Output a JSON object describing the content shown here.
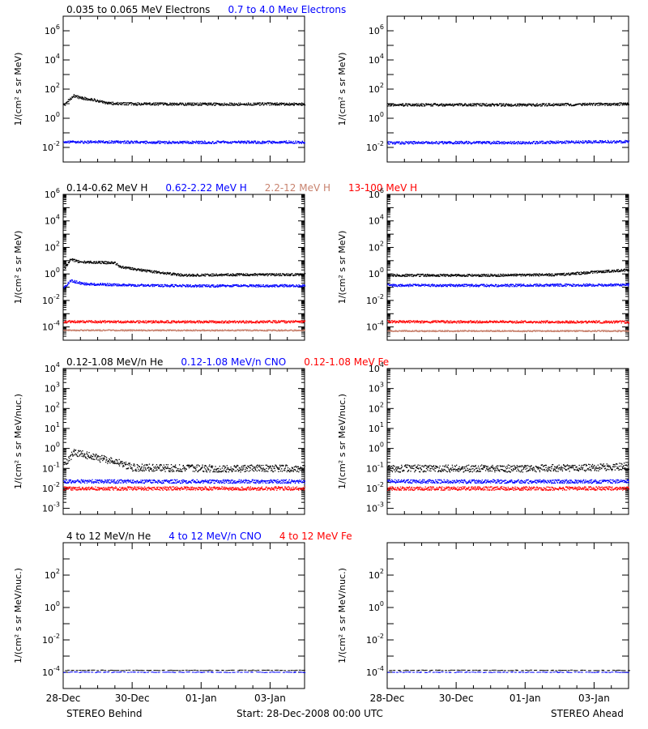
{
  "colors": {
    "black": "#000000",
    "blue": "#0000ff",
    "salmon": "#c8826e",
    "red": "#ff0000"
  },
  "footer": {
    "left": "STEREO Behind",
    "center": "Start: 28-Dec-2008 00:00 UTC",
    "right": "STEREO Ahead"
  },
  "chart_data": [
    {
      "type": "scatter",
      "panel": "electrons",
      "header": [
        {
          "text": "0.035 to 0.065 MeV Electrons",
          "color": "black"
        },
        {
          "text": "0.7 to 4.0 Mev Electrons",
          "color": "blue"
        }
      ],
      "ylabel": "1/(cm² s sr MeV)",
      "ylim_exp": [
        -3,
        7
      ],
      "ytick_exps": [
        -2,
        0,
        2,
        4,
        6
      ],
      "x_days": [
        0,
        7
      ],
      "xticks": [
        {
          "day": 0,
          "label": ""
        },
        {
          "day": 2,
          "label": ""
        },
        {
          "day": 4,
          "label": ""
        },
        {
          "day": 6,
          "label": ""
        }
      ],
      "behind": {
        "series": [
          {
            "color": "black",
            "points": [
              [
                0,
                0.85
              ],
              [
                0.15,
                1.25
              ],
              [
                0.3,
                1.55
              ],
              [
                0.5,
                1.4
              ],
              [
                0.8,
                1.3
              ],
              [
                1.0,
                1.2
              ],
              [
                1.2,
                1.05
              ],
              [
                1.6,
                1.0
              ],
              [
                2.5,
                0.98
              ],
              [
                4.0,
                0.97
              ],
              [
                5.5,
                0.98
              ],
              [
                7.0,
                0.98
              ]
            ]
          },
          {
            "color": "blue",
            "points": [
              [
                0,
                -1.65
              ],
              [
                1.0,
                -1.62
              ],
              [
                3.0,
                -1.65
              ],
              [
                5.0,
                -1.64
              ],
              [
                7.0,
                -1.63
              ]
            ]
          }
        ]
      },
      "ahead": {
        "series": [
          {
            "color": "black",
            "points": [
              [
                0,
                0.92
              ],
              [
                2.0,
                0.93
              ],
              [
                4.0,
                0.92
              ],
              [
                5.5,
                0.95
              ],
              [
                7.0,
                0.98
              ]
            ]
          },
          {
            "color": "blue",
            "points": [
              [
                0,
                -1.68
              ],
              [
                2.0,
                -1.66
              ],
              [
                4.0,
                -1.67
              ],
              [
                5.5,
                -1.62
              ],
              [
                7.0,
                -1.6
              ]
            ]
          }
        ]
      }
    },
    {
      "type": "scatter",
      "panel": "protons",
      "header": [
        {
          "text": "0.14-0.62 MeV H",
          "color": "black"
        },
        {
          "text": "0.62-2.22 MeV H",
          "color": "blue"
        },
        {
          "text": "2.2-12 MeV H",
          "color": "salmon"
        },
        {
          "text": "13-100 MeV H",
          "color": "red"
        }
      ],
      "ylabel": "1/(cm² s sr MeV)",
      "ylim_exp": [
        -5,
        6
      ],
      "ytick_exps": [
        -4,
        -2,
        0,
        2,
        4,
        6
      ],
      "x_days": [
        0,
        7
      ],
      "xticks": [
        {
          "day": 0,
          "label": ""
        },
        {
          "day": 2,
          "label": ""
        },
        {
          "day": 4,
          "label": ""
        },
        {
          "day": 6,
          "label": ""
        }
      ],
      "behind": {
        "series": [
          {
            "color": "black",
            "points": [
              [
                0,
                0.3
              ],
              [
                0.2,
                1.1
              ],
              [
                0.5,
                0.9
              ],
              [
                1.5,
                0.85
              ],
              [
                1.6,
                0.55
              ],
              [
                2.5,
                0.2
              ],
              [
                3.5,
                -0.1
              ],
              [
                5.0,
                -0.05
              ],
              [
                7.0,
                -0.05
              ]
            ]
          },
          {
            "color": "blue",
            "points": [
              [
                0,
                -1.1
              ],
              [
                0.2,
                -0.5
              ],
              [
                0.6,
                -0.75
              ],
              [
                2.0,
                -0.85
              ],
              [
                4.0,
                -0.9
              ],
              [
                7.0,
                -0.88
              ]
            ]
          },
          {
            "color": "salmon",
            "points": [
              [
                0,
                -4.25
              ],
              [
                7.0,
                -4.25
              ]
            ]
          },
          {
            "color": "red",
            "points": [
              [
                0,
                -3.6
              ],
              [
                2.0,
                -3.6
              ],
              [
                4.0,
                -3.62
              ],
              [
                7.0,
                -3.6
              ]
            ]
          }
        ]
      },
      "ahead": {
        "series": [
          {
            "color": "black",
            "points": [
              [
                0,
                -0.1
              ],
              [
                3.0,
                -0.1
              ],
              [
                5.0,
                -0.05
              ],
              [
                6.0,
                0.15
              ],
              [
                7.0,
                0.3
              ]
            ]
          },
          {
            "color": "blue",
            "points": [
              [
                0,
                -0.85
              ],
              [
                3.0,
                -0.87
              ],
              [
                5.0,
                -0.84
              ],
              [
                7.0,
                -0.82
              ]
            ]
          },
          {
            "color": "salmon",
            "points": [
              [
                0,
                -4.3
              ],
              [
                7.0,
                -4.3
              ]
            ]
          },
          {
            "color": "red",
            "points": [
              [
                0,
                -3.6
              ],
              [
                7.0,
                -3.62
              ]
            ]
          }
        ]
      }
    },
    {
      "type": "scatter",
      "panel": "low-energy-ions",
      "header": [
        {
          "text": "0.12-1.08 MeV/n He",
          "color": "black"
        },
        {
          "text": "0.12-1.08 MeV/n CNO",
          "color": "blue"
        },
        {
          "text": "0.12-1.08 MeV Fe",
          "color": "red"
        }
      ],
      "ylabel": "1/(cm² s sr MeV/nuc.)",
      "ylim_exp": [
        -3.3,
        4
      ],
      "ytick_exps": [
        -3,
        -2,
        -1,
        0,
        1,
        2,
        3,
        4
      ],
      "x_days": [
        0,
        7
      ],
      "xticks": [
        {
          "day": 0,
          "label": ""
        },
        {
          "day": 2,
          "label": ""
        },
        {
          "day": 4,
          "label": ""
        },
        {
          "day": 6,
          "label": ""
        }
      ],
      "behind": {
        "series": [
          {
            "color": "black",
            "points": [
              [
                0,
                -0.8
              ],
              [
                0.3,
                -0.2
              ],
              [
                0.6,
                -0.3
              ],
              [
                1.0,
                -0.5
              ],
              [
                1.4,
                -0.6
              ],
              [
                2.0,
                -0.95
              ],
              [
                4.0,
                -1.0
              ],
              [
                7.0,
                -1.0
              ]
            ]
          },
          {
            "color": "blue",
            "points": [
              [
                0,
                -1.65
              ],
              [
                7.0,
                -1.65
              ]
            ]
          },
          {
            "color": "red",
            "points": [
              [
                0,
                -2.0
              ],
              [
                7.0,
                -2.0
              ]
            ]
          }
        ]
      },
      "ahead": {
        "series": [
          {
            "color": "black",
            "points": [
              [
                0,
                -1.0
              ],
              [
                4.0,
                -1.0
              ],
              [
                6.0,
                -0.95
              ],
              [
                7.0,
                -0.9
              ]
            ]
          },
          {
            "color": "blue",
            "points": [
              [
                0,
                -1.65
              ],
              [
                7.0,
                -1.65
              ]
            ]
          },
          {
            "color": "red",
            "points": [
              [
                0,
                -2.0
              ],
              [
                7.0,
                -2.0
              ]
            ]
          }
        ]
      }
    },
    {
      "type": "scatter",
      "panel": "high-energy-ions",
      "header": [
        {
          "text": "4 to 12 MeV/n He",
          "color": "black"
        },
        {
          "text": "4 to 12 MeV/n CNO",
          "color": "blue"
        },
        {
          "text": "4 to 12 MeV Fe",
          "color": "red"
        }
      ],
      "ylabel": "1/(cm² s sr MeV/nuc.)",
      "ylim_exp": [
        -5,
        4
      ],
      "ytick_exps": [
        -4,
        -2,
        0,
        2
      ],
      "x_days": [
        0,
        7
      ],
      "xticks": [
        {
          "day": 0,
          "label": "28-Dec"
        },
        {
          "day": 2,
          "label": "30-Dec"
        },
        {
          "day": 4,
          "label": "01-Jan"
        },
        {
          "day": 6,
          "label": "03-Jan"
        }
      ],
      "behind": {
        "series": [
          {
            "color": "black",
            "points": [
              [
                0,
                -3.88
              ],
              [
                7.0,
                -3.88
              ]
            ]
          },
          {
            "color": "blue",
            "points": [
              [
                0,
                -4.0
              ],
              [
                7.0,
                -4.0
              ]
            ]
          }
        ]
      },
      "ahead": {
        "series": [
          {
            "color": "black",
            "points": [
              [
                0,
                -3.88
              ],
              [
                7.0,
                -3.88
              ]
            ]
          },
          {
            "color": "blue",
            "points": [
              [
                0,
                -4.0
              ],
              [
                7.0,
                -4.0
              ]
            ]
          }
        ]
      }
    }
  ]
}
